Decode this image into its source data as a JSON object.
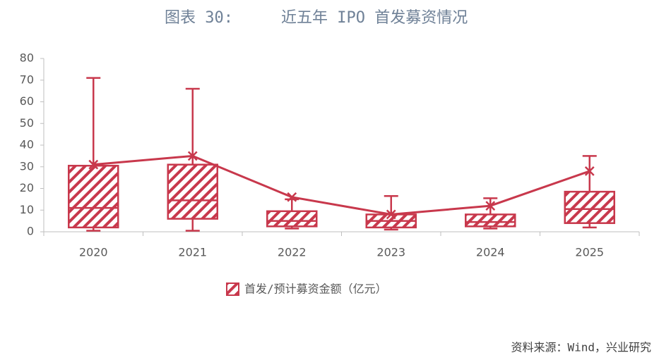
{
  "chart_data": {
    "type": "box",
    "figure_label": "图表 30:",
    "title": "近五年 IPO 首发募资情况",
    "categories": [
      "2020",
      "2021",
      "2022",
      "2023",
      "2024",
      "2025"
    ],
    "series": [
      {
        "name": "首发/预计募资金额（亿元）",
        "color": "#c8384c",
        "min": [
          0.5,
          0.5,
          1.5,
          1,
          1.5,
          2
        ],
        "q1": [
          2,
          6,
          2.5,
          2,
          2.5,
          4
        ],
        "median": [
          11,
          14.5,
          5,
          5,
          4.5,
          10.5
        ],
        "q3": [
          30.5,
          31,
          9.5,
          8,
          8,
          18.5
        ],
        "max": [
          71,
          66,
          15,
          16.5,
          15.5,
          35
        ],
        "mean": [
          31,
          35,
          16,
          8,
          12,
          28
        ]
      }
    ],
    "ylim": [
      0,
      80
    ],
    "yticks": [
      0,
      10,
      20,
      30,
      40,
      50,
      60,
      70,
      80
    ],
    "source": "资料来源：Wind，兴业研究"
  }
}
